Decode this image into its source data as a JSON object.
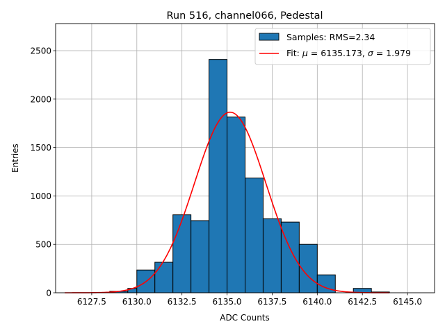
{
  "chart_data": {
    "type": "bar",
    "title": "Run 516, channel066, Pedestal",
    "xlabel": "ADC Counts",
    "ylabel": "Entries",
    "xlim": [
      6125.5,
      6146.5
    ],
    "ylim": [
      0,
      2780
    ],
    "xticks": [
      6127.5,
      6130.0,
      6132.5,
      6135.0,
      6137.5,
      6140.0,
      6142.5,
      6145.0
    ],
    "xtick_labels": [
      "6127.5",
      "6130.0",
      "6132.5",
      "6135.0",
      "6137.5",
      "6140.0",
      "6142.5",
      "6145.0"
    ],
    "yticks": [
      0,
      500,
      1000,
      1500,
      2000,
      2500
    ],
    "ytick_labels": [
      "0",
      "500",
      "1000",
      "1500",
      "2000",
      "2500"
    ],
    "grid": true,
    "legend_position": "top-right",
    "histogram": {
      "name": "Samples: RMS=2.34",
      "color": "#1f77b4",
      "edge_color": "#000000",
      "bins": [
        {
          "x0": 6128.5,
          "x1": 6129.5,
          "count": 15
        },
        {
          "x0": 6129.5,
          "x1": 6130.0,
          "count": 45
        },
        {
          "x0": 6130.0,
          "x1": 6131.0,
          "count": 235
        },
        {
          "x0": 6131.0,
          "x1": 6132.0,
          "count": 315
        },
        {
          "x0": 6132.0,
          "x1": 6133.0,
          "count": 805
        },
        {
          "x0": 6133.0,
          "x1": 6134.0,
          "count": 745
        },
        {
          "x0": 6134.0,
          "x1": 6135.0,
          "count": 2410
        },
        {
          "x0": 6135.0,
          "x1": 6136.0,
          "count": 1815
        },
        {
          "x0": 6136.0,
          "x1": 6137.0,
          "count": 1185
        },
        {
          "x0": 6137.0,
          "x1": 6138.0,
          "count": 765
        },
        {
          "x0": 6138.0,
          "x1": 6139.0,
          "count": 730
        },
        {
          "x0": 6139.0,
          "x1": 6140.0,
          "count": 500
        },
        {
          "x0": 6140.0,
          "x1": 6141.0,
          "count": 185
        },
        {
          "x0": 6142.0,
          "x1": 6143.0,
          "count": 45
        },
        {
          "x0": 6143.0,
          "x1": 6144.0,
          "count": 8
        }
      ]
    },
    "fit": {
      "name": "Fit: μ = 6135.173, σ = 1.979",
      "label_prefix": "Fit: ",
      "mu_symbol": "μ",
      "mu_text": " = 6135.173, ",
      "sigma_symbol": "σ",
      "sigma_text": " = 1.979",
      "color": "#ff0000",
      "mu": 6135.173,
      "sigma": 1.979,
      "amplitude": 1865,
      "x_range": [
        6126.0,
        6144.0
      ]
    }
  }
}
